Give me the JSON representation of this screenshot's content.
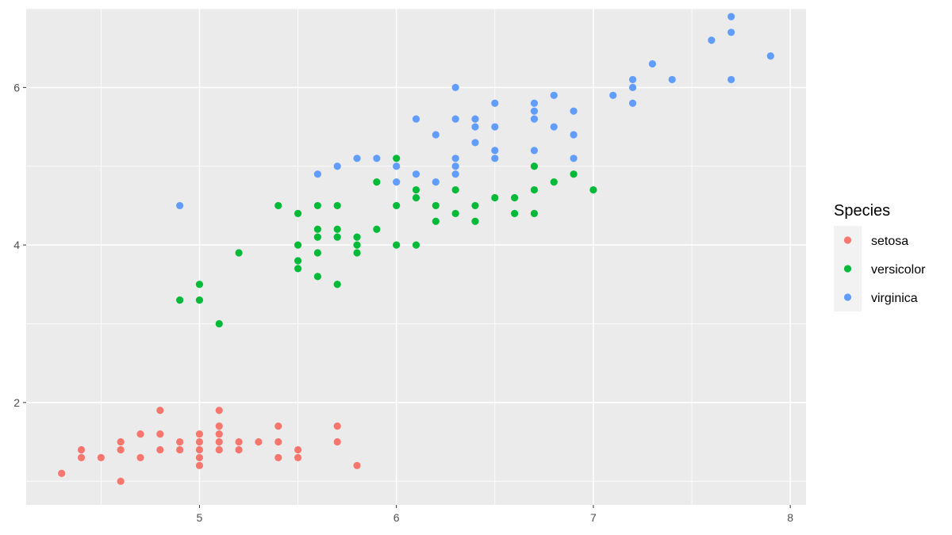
{
  "chart_data": {
    "type": "scatter",
    "title": "",
    "xlabel": "",
    "ylabel": "",
    "xlim": [
      4.12,
      8.08
    ],
    "ylim": [
      0.7,
      7.0
    ],
    "x_ticks": [
      5,
      6,
      7,
      8
    ],
    "y_ticks": [
      2,
      4,
      6
    ],
    "grid": true,
    "legend": {
      "title": "Species",
      "position": "right"
    },
    "series": [
      {
        "name": "setosa",
        "color": "#F8766D",
        "points": [
          [
            4.3,
            1.1
          ],
          [
            4.4,
            1.4
          ],
          [
            4.4,
            1.3
          ],
          [
            4.5,
            1.3
          ],
          [
            4.6,
            1.5
          ],
          [
            4.6,
            1.4
          ],
          [
            4.6,
            1.0
          ],
          [
            4.7,
            1.6
          ],
          [
            4.7,
            1.3
          ],
          [
            4.8,
            1.9
          ],
          [
            4.8,
            1.6
          ],
          [
            4.8,
            1.4
          ],
          [
            4.9,
            1.5
          ],
          [
            4.9,
            1.4
          ],
          [
            5.0,
            1.6
          ],
          [
            5.0,
            1.5
          ],
          [
            5.0,
            1.4
          ],
          [
            5.0,
            1.3
          ],
          [
            5.0,
            1.2
          ],
          [
            5.1,
            1.9
          ],
          [
            5.1,
            1.7
          ],
          [
            5.1,
            1.6
          ],
          [
            5.1,
            1.5
          ],
          [
            5.1,
            1.4
          ],
          [
            5.2,
            1.5
          ],
          [
            5.2,
            1.4
          ],
          [
            5.3,
            1.5
          ],
          [
            5.4,
            1.7
          ],
          [
            5.4,
            1.5
          ],
          [
            5.4,
            1.3
          ],
          [
            5.5,
            1.4
          ],
          [
            5.5,
            1.3
          ],
          [
            5.7,
            1.7
          ],
          [
            5.7,
            1.5
          ],
          [
            5.8,
            1.2
          ]
        ]
      },
      {
        "name": "versicolor",
        "color": "#00BA38",
        "points": [
          [
            4.9,
            3.3
          ],
          [
            5.0,
            3.5
          ],
          [
            5.0,
            3.3
          ],
          [
            5.1,
            3.0
          ],
          [
            5.2,
            3.9
          ],
          [
            5.4,
            4.5
          ],
          [
            5.5,
            4.4
          ],
          [
            5.5,
            4.0
          ],
          [
            5.5,
            3.8
          ],
          [
            5.5,
            3.7
          ],
          [
            5.6,
            4.5
          ],
          [
            5.6,
            4.2
          ],
          [
            5.6,
            4.1
          ],
          [
            5.6,
            3.9
          ],
          [
            5.6,
            3.6
          ],
          [
            5.7,
            4.5
          ],
          [
            5.7,
            4.2
          ],
          [
            5.7,
            4.1
          ],
          [
            5.7,
            3.5
          ],
          [
            5.8,
            4.1
          ],
          [
            5.8,
            4.0
          ],
          [
            5.8,
            3.9
          ],
          [
            5.9,
            4.8
          ],
          [
            5.9,
            4.2
          ],
          [
            6.0,
            5.1
          ],
          [
            6.0,
            4.5
          ],
          [
            6.0,
            4.0
          ],
          [
            6.1,
            4.7
          ],
          [
            6.1,
            4.6
          ],
          [
            6.1,
            4.0
          ],
          [
            6.2,
            4.5
          ],
          [
            6.2,
            4.3
          ],
          [
            6.3,
            4.7
          ],
          [
            6.3,
            4.4
          ],
          [
            6.4,
            4.5
          ],
          [
            6.4,
            4.3
          ],
          [
            6.5,
            4.6
          ],
          [
            6.6,
            4.6
          ],
          [
            6.6,
            4.4
          ],
          [
            6.7,
            5.0
          ],
          [
            6.7,
            4.7
          ],
          [
            6.7,
            4.4
          ],
          [
            6.8,
            4.8
          ],
          [
            6.9,
            4.9
          ],
          [
            7.0,
            4.7
          ]
        ]
      },
      {
        "name": "virginica",
        "color": "#619CFF",
        "points": [
          [
            4.9,
            4.5
          ],
          [
            5.6,
            4.9
          ],
          [
            5.7,
            5.0
          ],
          [
            5.8,
            5.1
          ],
          [
            5.9,
            5.1
          ],
          [
            6.0,
            5.0
          ],
          [
            6.0,
            4.8
          ],
          [
            6.1,
            5.6
          ],
          [
            6.1,
            4.9
          ],
          [
            6.2,
            5.4
          ],
          [
            6.2,
            4.8
          ],
          [
            6.3,
            6.0
          ],
          [
            6.3,
            5.6
          ],
          [
            6.3,
            5.1
          ],
          [
            6.3,
            5.0
          ],
          [
            6.3,
            4.9
          ],
          [
            6.4,
            5.6
          ],
          [
            6.4,
            5.5
          ],
          [
            6.4,
            5.3
          ],
          [
            6.5,
            5.8
          ],
          [
            6.5,
            5.5
          ],
          [
            6.5,
            5.2
          ],
          [
            6.5,
            5.1
          ],
          [
            6.7,
            5.8
          ],
          [
            6.7,
            5.7
          ],
          [
            6.7,
            5.6
          ],
          [
            6.7,
            5.2
          ],
          [
            6.8,
            5.9
          ],
          [
            6.8,
            5.5
          ],
          [
            6.9,
            5.7
          ],
          [
            6.9,
            5.4
          ],
          [
            6.9,
            5.1
          ],
          [
            7.1,
            5.9
          ],
          [
            7.2,
            6.1
          ],
          [
            7.2,
            6.0
          ],
          [
            7.2,
            5.8
          ],
          [
            7.3,
            6.3
          ],
          [
            7.4,
            6.1
          ],
          [
            7.6,
            6.6
          ],
          [
            7.7,
            6.9
          ],
          [
            7.7,
            6.7
          ],
          [
            7.7,
            6.1
          ],
          [
            7.9,
            6.4
          ]
        ]
      }
    ]
  }
}
